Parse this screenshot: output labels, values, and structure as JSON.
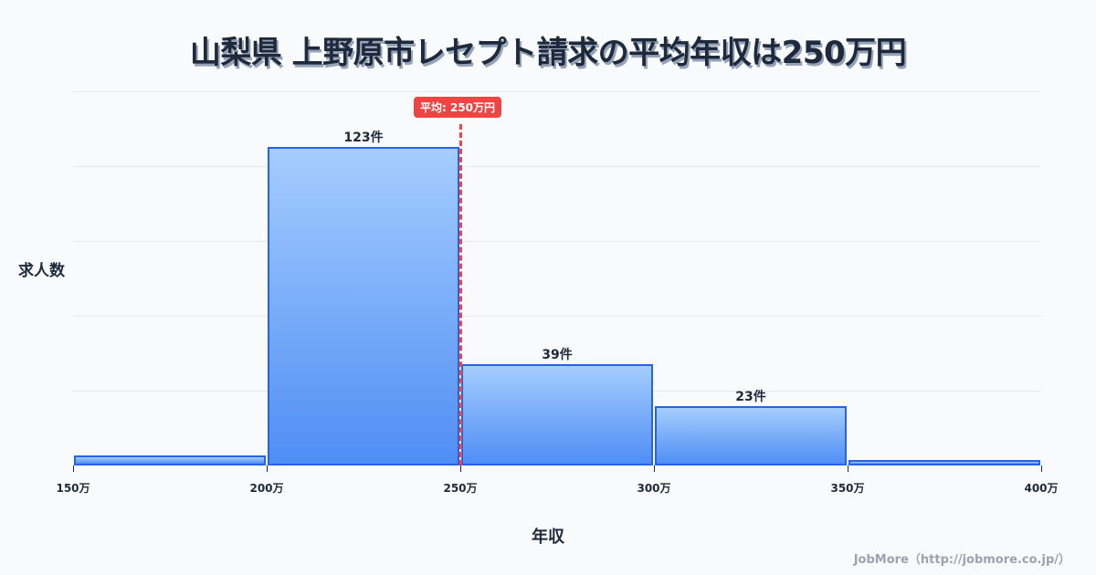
{
  "title": "山梨県 上野原市レセプト請求の平均年収は250万円",
  "axis": {
    "ylabel": "求人数",
    "xlabel": "年収"
  },
  "average": {
    "label": "平均: 250万円",
    "value": 250,
    "color": "#ef4444"
  },
  "credit": "JobMore（http://jobmore.co.jp/）",
  "colors": {
    "bar_border": "#2563eb",
    "bar_top": "#a5cdfd",
    "bar_bottom": "#4f8ef5",
    "background": "#f8fafc",
    "text": "#1e293b"
  },
  "chart_data": {
    "type": "bar",
    "title": "山梨県 上野原市レセプト請求の平均年収は250万円",
    "xlabel": "年収",
    "ylabel": "求人数",
    "categories": [
      "150万-200万",
      "200万-250万",
      "250万-300万",
      "300万-350万",
      "350万-400万"
    ],
    "bins": [
      [
        150,
        200
      ],
      [
        200,
        250
      ],
      [
        250,
        300
      ],
      [
        300,
        350
      ],
      [
        350,
        400
      ]
    ],
    "values": [
      4,
      123,
      39,
      23,
      2
    ],
    "data_labels": [
      "",
      "123件",
      "39件",
      "23件",
      ""
    ],
    "x_ticks": [
      "150万",
      "200万",
      "250万",
      "300万",
      "350万",
      "400万"
    ],
    "xlim": [
      150,
      400
    ],
    "ylim": [
      0,
      144
    ],
    "grid": true,
    "legend": false,
    "annotations": [
      {
        "type": "vline",
        "x": 250,
        "label": "平均: 250万円",
        "style": "dashed",
        "color": "#ef4444"
      }
    ]
  }
}
